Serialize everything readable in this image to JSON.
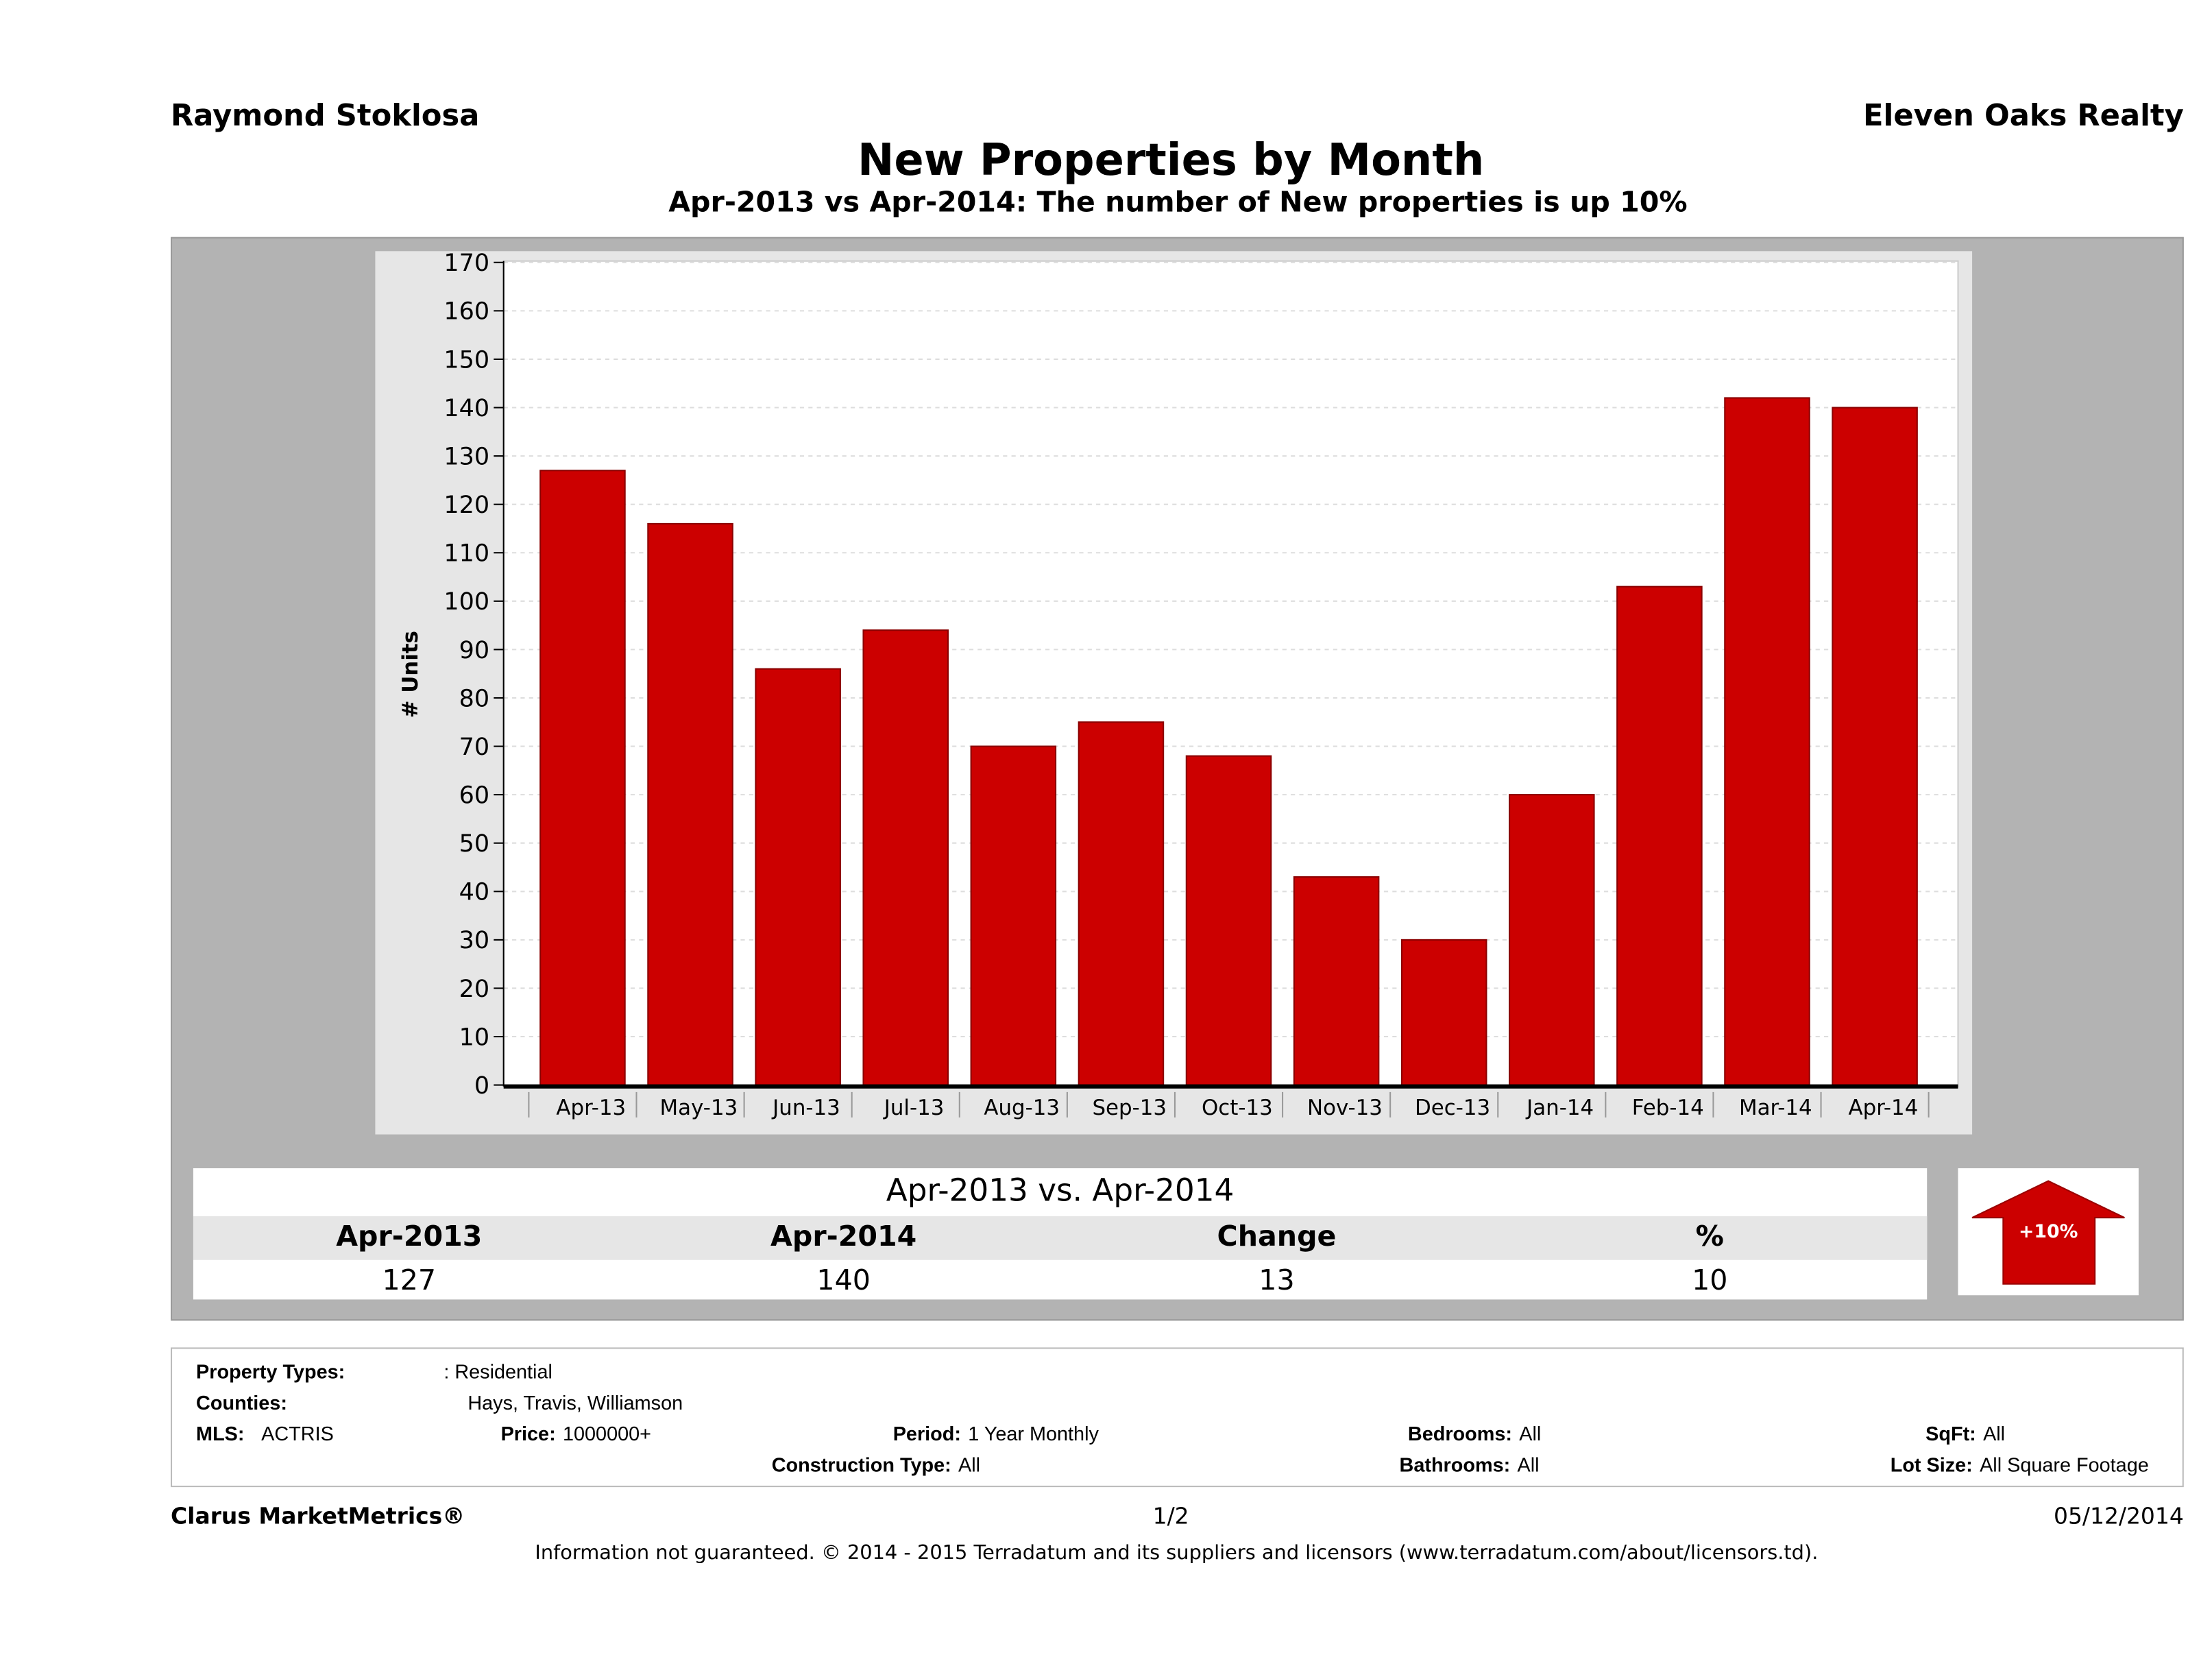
{
  "header": {
    "agent": "Raymond Stoklosa",
    "brokerage": "Eleven Oaks Realty"
  },
  "chart_data": {
    "type": "bar",
    "title": "New Properties by Month",
    "subtitle": "Apr-2013 vs Apr-2014: The number of New  properties is up 10%",
    "xlabel": "",
    "ylabel": "# Units",
    "ylim": [
      0,
      170
    ],
    "yticks": [
      0,
      10,
      20,
      30,
      40,
      50,
      60,
      70,
      80,
      90,
      100,
      110,
      120,
      130,
      140,
      150,
      160,
      170
    ],
    "categories": [
      "Apr-13",
      "May-13",
      "Jun-13",
      "Jul-13",
      "Aug-13",
      "Sep-13",
      "Oct-13",
      "Nov-13",
      "Dec-13",
      "Jan-14",
      "Feb-14",
      "Mar-14",
      "Apr-14"
    ],
    "values": [
      127,
      116,
      86,
      94,
      70,
      75,
      68,
      43,
      30,
      60,
      103,
      142,
      140
    ],
    "bar_color": "#cc0000",
    "grid": true
  },
  "summary": {
    "title": "Apr-2013 vs. Apr-2014",
    "headers": [
      "Apr-2013",
      "Apr-2014",
      "Change",
      "%"
    ],
    "values": [
      "127",
      "140",
      "13",
      "10"
    ],
    "badge": "+10%"
  },
  "criteria": {
    "property_types_label": "Property Types:",
    "property_types": ": Residential",
    "counties_label": "Counties:",
    "counties": "Hays, Travis, Williamson",
    "mls_label": "MLS:",
    "mls": "ACTRIS",
    "price_label": "Price:",
    "price": "1000000+",
    "period_label": "Period:",
    "period": "1 Year Monthly",
    "construction_label": "Construction Type:",
    "construction": "All",
    "bedrooms_label": "Bedrooms:",
    "bedrooms": "All",
    "bathrooms_label": "Bathrooms:",
    "bathrooms": "All",
    "sqft_label": "SqFt:",
    "sqft": "All",
    "lot_label": "Lot Size:",
    "lot": "All Square Footage"
  },
  "footer": {
    "brand": "Clarus MarketMetrics®",
    "page": "1/2",
    "date": "05/12/2014",
    "disclaimer": "Information not guaranteed. © 2014 - 2015 Terradatum and its suppliers and licensors (www.terradatum.com/about/licensors.td)."
  }
}
